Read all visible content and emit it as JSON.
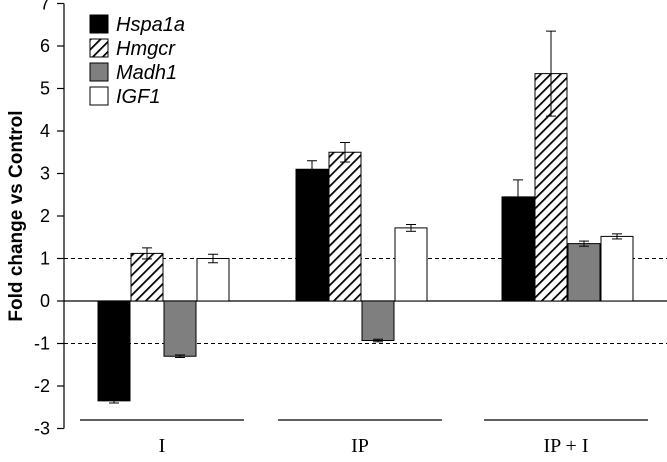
{
  "chart_data": {
    "type": "bar",
    "title": "",
    "xlabel": "",
    "ylabel": "Fold change vs Control",
    "ylim": [
      -3,
      7
    ],
    "yticks": [
      -3,
      -2,
      -1,
      0,
      1,
      2,
      3,
      4,
      5,
      6,
      7
    ],
    "reference_lines": [
      1,
      -1
    ],
    "grid": false,
    "legend_position": "top-left",
    "categories": [
      "I",
      "IP",
      "IP + I"
    ],
    "series": [
      {
        "name": "Hspa1a",
        "fill": "#000000",
        "pattern": "solid",
        "values": [
          -2.35,
          3.1,
          2.45
        ],
        "errors": [
          0.05,
          0.2,
          0.4
        ]
      },
      {
        "name": "Hmgcr",
        "fill": "#ffffff",
        "pattern": "hatch",
        "values": [
          1.12,
          3.5,
          5.35
        ],
        "errors": [
          0.13,
          0.23,
          1.0
        ]
      },
      {
        "name": "Madh1",
        "fill": "#7f7f7f",
        "pattern": "solid",
        "values": [
          -1.3,
          -0.93,
          1.35
        ],
        "errors": [
          0.03,
          0.03,
          0.06
        ]
      },
      {
        "name": "IGF1",
        "fill": "#ffffff",
        "pattern": "solid",
        "values": [
          1.0,
          1.72,
          1.52
        ],
        "errors": [
          0.1,
          0.08,
          0.06
        ]
      }
    ]
  }
}
